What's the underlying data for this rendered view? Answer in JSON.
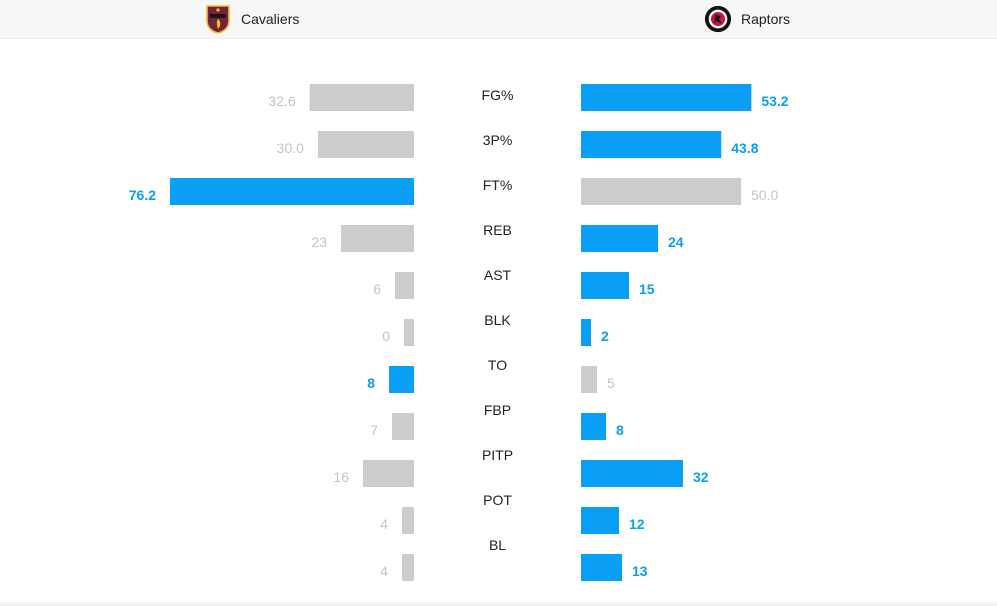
{
  "header": {
    "home": {
      "name": "Cavaliers",
      "logo_icon": "cavaliers-logo-icon"
    },
    "away": {
      "name": "Raptors",
      "logo_icon": "raptors-logo-icon"
    }
  },
  "colors": {
    "leader": "#0a9ef4",
    "trailer": "#cccccc",
    "trailer_text": "#c4c4c4",
    "label": "#222222",
    "cavaliers_wine": "#6f263d",
    "cavaliers_gold": "#fdbb30",
    "raptors_red": "#ce1141",
    "raptors_black": "#111111"
  },
  "chart_data": {
    "type": "bar",
    "orientation": "horizontal-diverging",
    "categories": [
      "FG%",
      "3P%",
      "FT%",
      "REB",
      "AST",
      "BLK",
      "TO",
      "FBP",
      "PITP",
      "POT",
      "BL"
    ],
    "series": [
      {
        "name": "Cavaliers",
        "values": [
          32.6,
          30.0,
          76.2,
          23,
          6,
          0,
          8,
          7,
          16,
          4,
          4
        ],
        "labels": [
          "32.6",
          "30.0",
          "76.2",
          "23",
          "6",
          "0",
          "8",
          "7",
          "16",
          "4",
          "4"
        ],
        "highlighted": [
          false,
          false,
          true,
          false,
          false,
          false,
          true,
          false,
          false,
          false,
          false
        ]
      },
      {
        "name": "Raptors",
        "values": [
          53.2,
          43.8,
          50.0,
          24,
          15,
          2,
          5,
          8,
          32,
          12,
          13
        ],
        "labels": [
          "53.2",
          "43.8",
          "50.0",
          "24",
          "15",
          "2",
          "5",
          "8",
          "32",
          "12",
          "13"
        ],
        "highlighted": [
          true,
          true,
          false,
          true,
          true,
          true,
          false,
          true,
          true,
          true,
          true
        ]
      }
    ]
  }
}
